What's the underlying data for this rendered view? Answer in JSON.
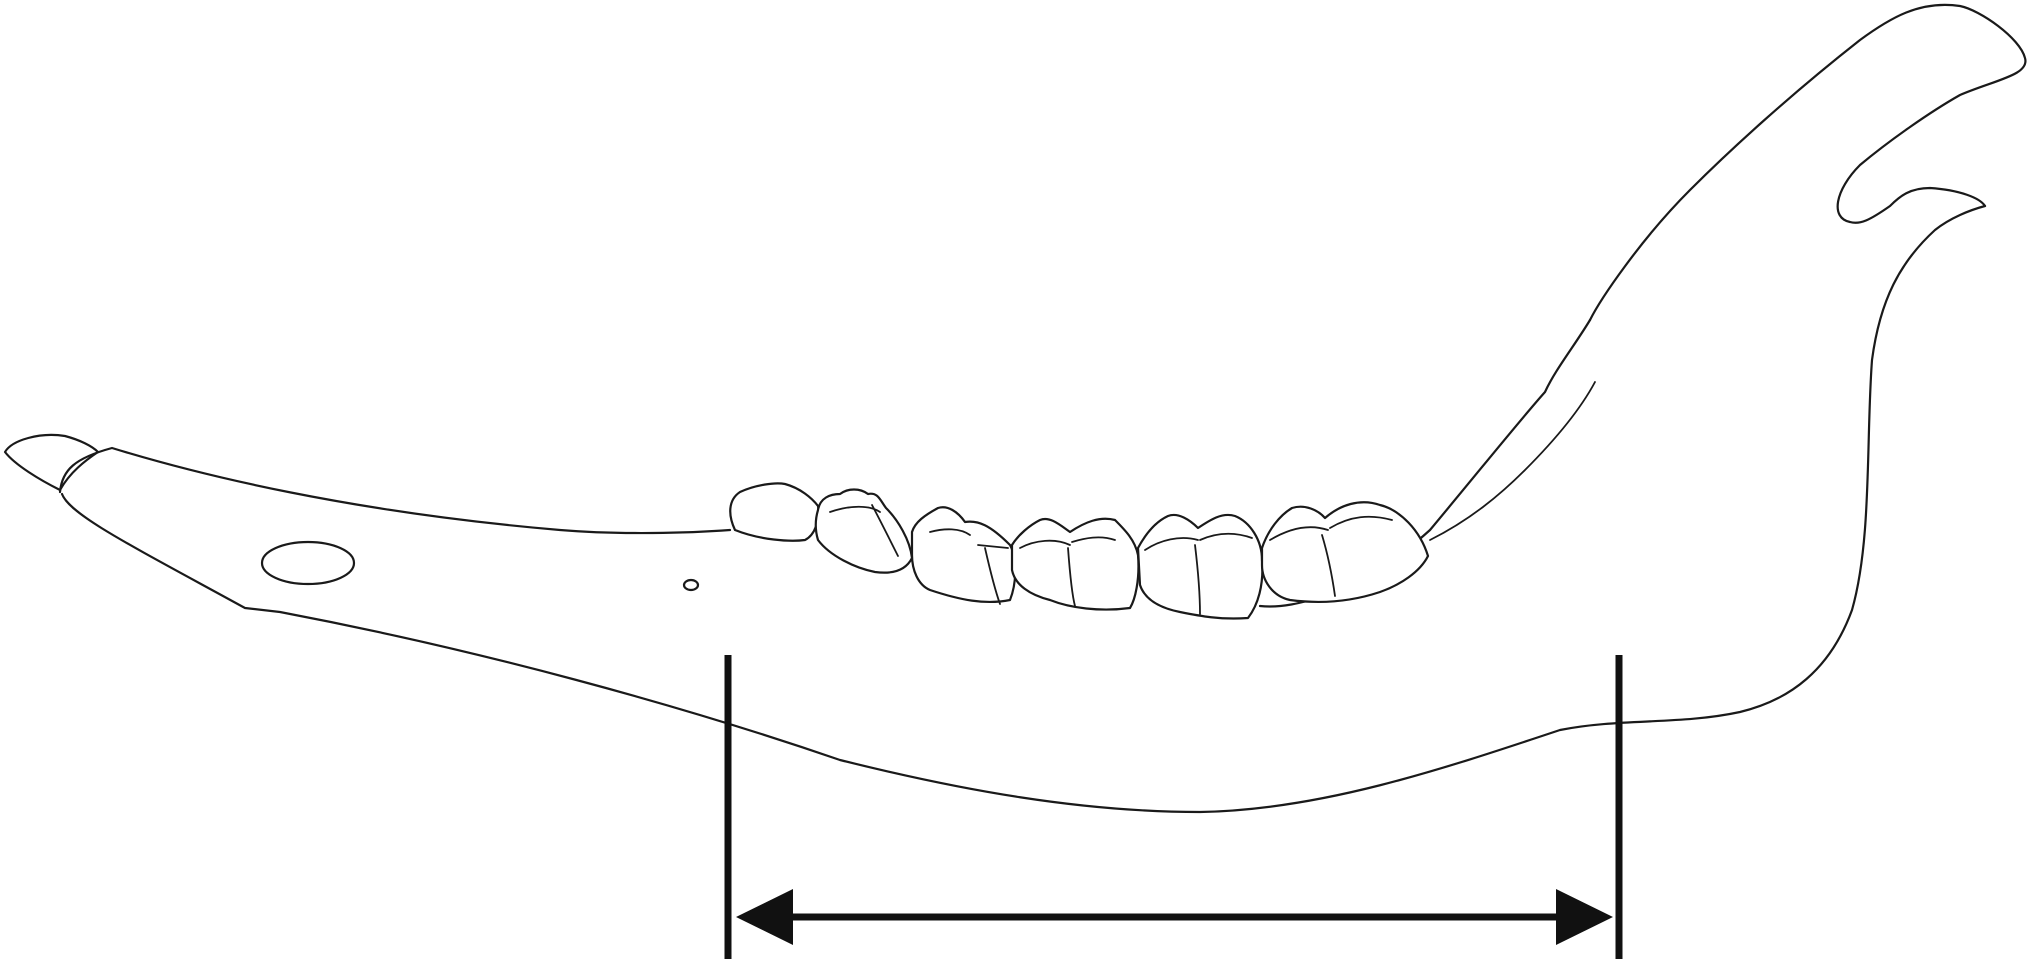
{
  "figure": {
    "subject": "mandible",
    "colors": {
      "background": "#ffffff",
      "line": "#1a1a1a",
      "measurement": "#111111"
    },
    "icons": [
      "double-headed-arrow-icon"
    ]
  }
}
